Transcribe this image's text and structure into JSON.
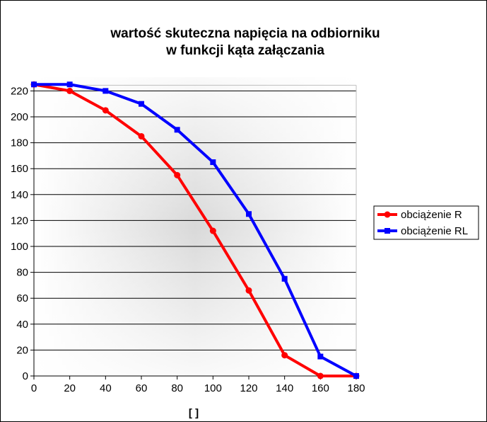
{
  "chart_data": {
    "type": "line",
    "title_line1": "wartość skuteczna napięcia na odbiorniku",
    "title_line2": "w funkcji kąta załączania",
    "xlabel": "[ ]",
    "ylabel": "",
    "x": [
      0,
      20,
      40,
      60,
      80,
      100,
      120,
      140,
      160,
      180
    ],
    "xlim": [
      0,
      180
    ],
    "ylim": [
      0,
      220
    ],
    "xticks": [
      0,
      20,
      40,
      60,
      80,
      100,
      120,
      140,
      160,
      180
    ],
    "yticks": [
      0,
      20,
      40,
      60,
      80,
      100,
      120,
      140,
      160,
      180,
      200,
      220
    ],
    "grid": "horizontal",
    "legend_position": "right",
    "series": [
      {
        "name": "obciążenie R",
        "color": "#ff0000",
        "marker": "circle",
        "values": [
          225,
          220,
          205,
          185,
          155,
          112,
          66,
          16,
          0,
          0
        ]
      },
      {
        "name": "obciążenie RL",
        "color": "#0000ff",
        "marker": "square",
        "values": [
          225,
          225,
          220,
          210,
          190,
          165,
          125,
          75,
          15,
          0
        ]
      }
    ]
  }
}
